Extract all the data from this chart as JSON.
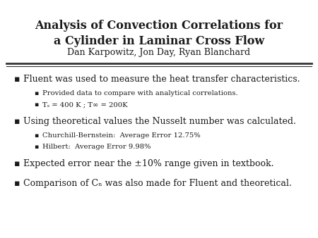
{
  "title_line1": "Analysis of Convection Correlations for",
  "title_line2": "a Cylinder in Laminar Cross Flow",
  "subtitle": "Dan Karpowitz, Jon Day, Ryan Blanchard",
  "background_color": "#ffffff",
  "title_fontsize": 11.5,
  "subtitle_fontsize": 9.0,
  "bullet_fontsize": 9.0,
  "sub_bullet_fontsize": 7.2,
  "bullet_color": "#1a1a1a",
  "line_color": "#333333",
  "bullets": [
    {
      "text": "Fluent was used to measure the heat transfer characteristics.",
      "sub_bullets": [
        "Provided data to compare with analytical correlations.",
        "Tₛ = 400 K ; T∞ = 200K"
      ]
    },
    {
      "text": "Using theoretical values the Nusselt number was calculated.",
      "sub_bullets": [
        "Churchill-Bernstein:  Average Error 12.75%",
        "Hilbert:  Average Error 9.98%"
      ]
    },
    {
      "text": "Expected error near the ±10% range given in textbook.",
      "sub_bullets": []
    },
    {
      "text": "Comparison of Cₙ was also made for Fluent and theoretical.",
      "sub_bullets": []
    }
  ]
}
